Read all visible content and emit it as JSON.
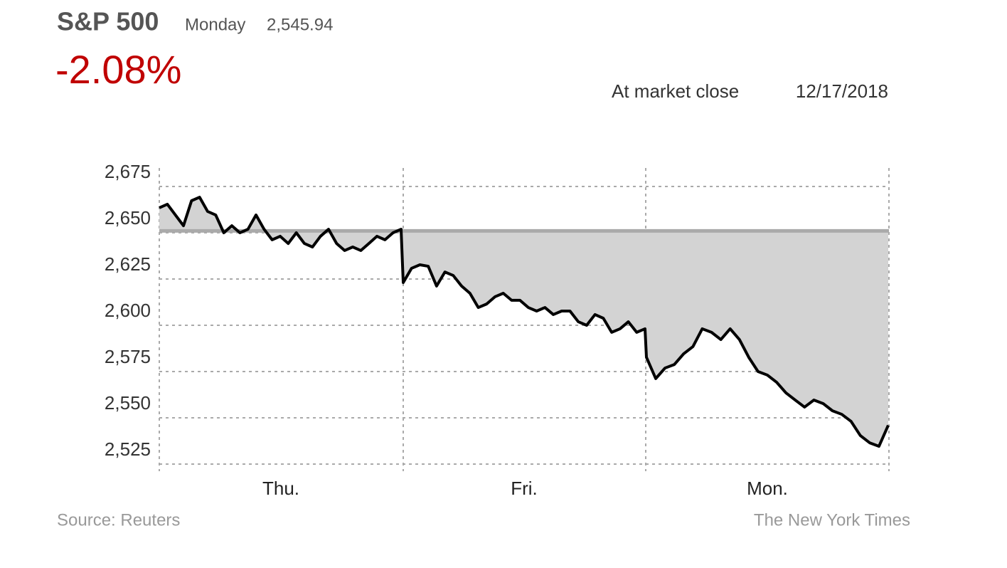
{
  "header": {
    "index_name": "S&P 500",
    "day": "Monday",
    "level": "2,545.94",
    "change": "-2.08%",
    "close_note": "At market close",
    "date": "12/17/2018"
  },
  "chart_data": {
    "type": "line",
    "categories": [
      "Thu.",
      "Fri.",
      "Mon."
    ],
    "values": [
      [
        2663.5,
        2665.4,
        2659.6,
        2653.8,
        2667.3,
        2669.2,
        2661.5,
        2659.6,
        2650,
        2653.8,
        2650,
        2651.9,
        2659.6,
        2651.9,
        2646.2,
        2648.1,
        2644.2,
        2650,
        2644.2,
        2642.3,
        2648.1,
        2651.9,
        2644.2,
        2640.4,
        2642.3,
        2640.4,
        2644.2,
        2648.1,
        2646.2,
        2650,
        2651.9
      ],
      [
        2623.1,
        2630.8,
        2632.7,
        2631.9,
        2621.2,
        2628.8,
        2626.9,
        2621.2,
        2617.3,
        2609.6,
        2611.5,
        2615.4,
        2617.3,
        2613.5,
        2613.5,
        2609.6,
        2607.7,
        2609.6,
        2605.8,
        2607.7,
        2607.7,
        2601.9,
        2600,
        2605.8,
        2603.8,
        2596.2,
        2598.1,
        2601.9,
        2596.2,
        2598.1
      ],
      [
        2582.7,
        2571.2,
        2576.9,
        2578.8,
        2584.6,
        2588.5,
        2598.1,
        2596.2,
        2592.3,
        2598.1,
        2592.3,
        2582.7,
        2575,
        2573.1,
        2569.2,
        2563.5,
        2559.6,
        2555.8,
        2559.6,
        2557.7,
        2553.8,
        2551.9,
        2548.1,
        2540.4,
        2536.5,
        2534.6,
        2545.94
      ]
    ],
    "baseline": 2651,
    "color": "#000000",
    "fill_color": "#d3d3d3",
    "ylim": [
      2525,
      2685
    ],
    "yticks": [
      {
        "value": 2525,
        "label": "2,525"
      },
      {
        "value": 2550,
        "label": "2,550"
      },
      {
        "value": 2575,
        "label": "2,575"
      },
      {
        "value": 2600,
        "label": "2,600"
      },
      {
        "value": 2625,
        "label": "2,625"
      },
      {
        "value": 2650,
        "label": "2,650"
      },
      {
        "value": 2675,
        "label": "2,675"
      }
    ],
    "grid": true
  },
  "footer": {
    "source": "Source: Reuters",
    "credit": "The New York Times"
  }
}
